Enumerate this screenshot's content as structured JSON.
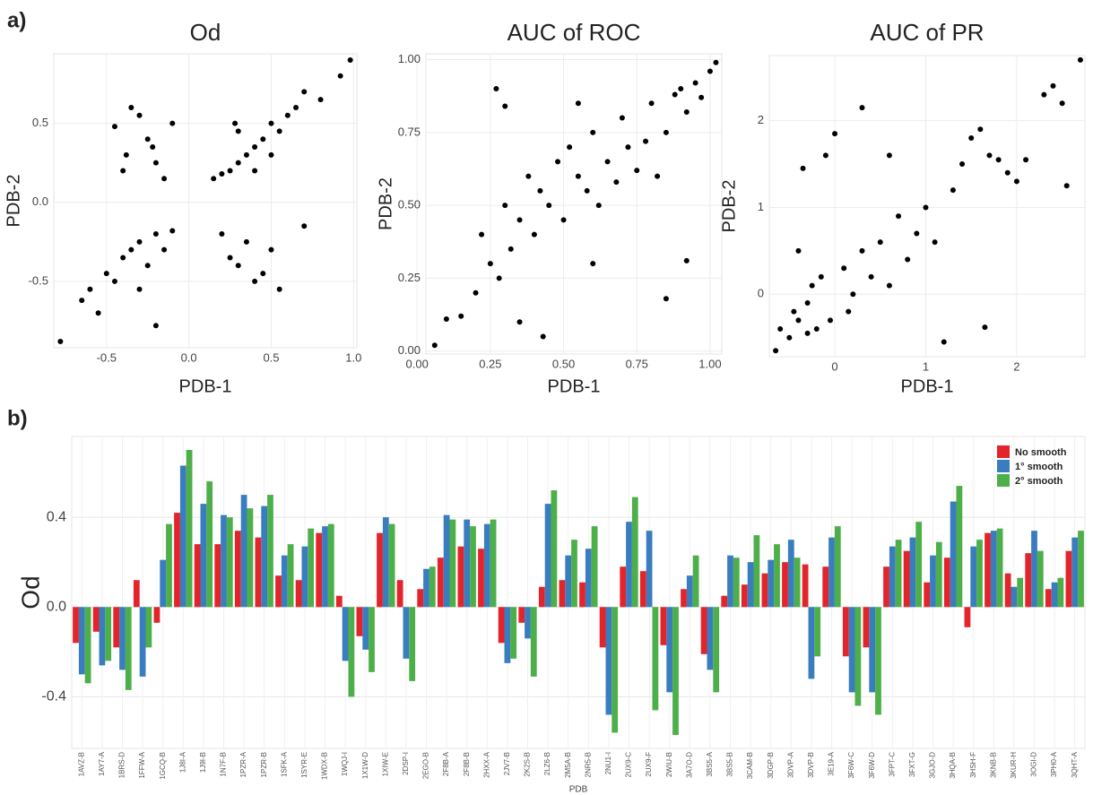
{
  "panel_labels": [
    "a)",
    "b)"
  ],
  "chart_data": [
    {
      "type": "scatter",
      "title": "Od",
      "x_label": "PDB-1",
      "y_label": "PDB-2",
      "color": "#000000",
      "grid": true,
      "xlim": [
        -0.82,
        1.02
      ],
      "ylim": [
        -0.92,
        0.94
      ],
      "xticks": [
        -0.5,
        {
          "value": 0,
          "label": "0.0"
        },
        0.5,
        {
          "value": 1,
          "label": "1.0"
        }
      ],
      "yticks": [
        -0.5,
        {
          "value": 0,
          "label": "0.0"
        },
        0.5
      ],
      "x": [
        -0.78,
        0.98,
        0.92,
        0.8,
        0.7,
        0.6,
        0.55,
        0.5,
        0.45,
        0.4,
        0.35,
        0.3,
        0.25,
        0.2,
        0.15,
        0.65,
        0.3,
        0.4,
        0.5,
        0.28,
        -0.45,
        -0.38,
        -0.3,
        -0.25,
        -0.2,
        -0.15,
        -0.1,
        -0.35,
        -0.22,
        -0.4,
        -0.6,
        -0.55,
        -0.5,
        -0.45,
        -0.4,
        -0.35,
        -0.3,
        -0.25,
        -0.2,
        -0.15,
        -0.1,
        -0.65,
        -0.3,
        -0.2,
        0.2,
        0.3,
        0.35,
        0.4,
        0.5,
        0.55,
        0.7,
        0.25,
        0.45
      ],
      "y": [
        -0.88,
        0.9,
        0.8,
        0.65,
        0.7,
        0.55,
        0.45,
        0.5,
        0.4,
        0.35,
        0.3,
        0.25,
        0.2,
        0.18,
        0.15,
        0.6,
        0.45,
        0.2,
        0.3,
        0.5,
        0.48,
        0.3,
        0.55,
        0.4,
        0.25,
        0.15,
        0.5,
        0.6,
        0.35,
        0.2,
        -0.55,
        -0.7,
        -0.45,
        -0.5,
        -0.35,
        -0.3,
        -0.25,
        -0.4,
        -0.2,
        -0.3,
        -0.18,
        -0.62,
        -0.55,
        -0.78,
        -0.2,
        -0.4,
        -0.25,
        -0.5,
        -0.3,
        -0.55,
        -0.15,
        -0.35,
        -0.45
      ]
    },
    {
      "type": "scatter",
      "title": "AUC of ROC",
      "x_label": "PDB-1",
      "y_label": "PDB-2",
      "color": "#000000",
      "grid": true,
      "xlim": [
        0.03,
        1.04
      ],
      "ylim": [
        -0.01,
        1.02
      ],
      "xticks": [
        {
          "value": 0,
          "label": "0.00"
        },
        0.25,
        {
          "value": 0.5,
          "label": "0.50"
        },
        0.75,
        {
          "value": 1,
          "label": "1.00"
        }
      ],
      "yticks": [
        {
          "value": 0,
          "label": "0.00"
        },
        0.25,
        {
          "value": 0.5,
          "label": "0.50"
        },
        0.75,
        {
          "value": 1,
          "label": "1.00"
        }
      ],
      "x": [
        0.06,
        0.1,
        0.15,
        0.2,
        0.22,
        0.25,
        0.28,
        0.3,
        0.32,
        0.35,
        0.38,
        0.4,
        0.42,
        0.45,
        0.48,
        0.5,
        0.52,
        0.55,
        0.58,
        0.6,
        0.62,
        0.65,
        0.68,
        0.7,
        0.72,
        0.75,
        0.78,
        0.8,
        0.82,
        0.85,
        0.88,
        0.9,
        0.92,
        0.95,
        0.97,
        1.0,
        1.02,
        0.27,
        0.3,
        0.43,
        0.85,
        0.92,
        0.6,
        0.55,
        0.35
      ],
      "y": [
        0.02,
        0.11,
        0.12,
        0.2,
        0.4,
        0.3,
        0.25,
        0.5,
        0.35,
        0.45,
        0.6,
        0.4,
        0.55,
        0.5,
        0.65,
        0.45,
        0.7,
        0.6,
        0.55,
        0.75,
        0.5,
        0.65,
        0.58,
        0.8,
        0.7,
        0.62,
        0.72,
        0.85,
        0.6,
        0.75,
        0.88,
        0.9,
        0.82,
        0.92,
        0.87,
        0.96,
        0.99,
        0.9,
        0.84,
        0.05,
        0.18,
        0.31,
        0.3,
        0.85,
        0.1
      ]
    },
    {
      "type": "scatter",
      "title": "AUC of PR",
      "x_label": "PDB-1",
      "y_label": "PDB-2",
      "color": "#000000",
      "grid": true,
      "xlim": [
        -0.72,
        2.75
      ],
      "ylim": [
        -0.72,
        2.75
      ],
      "xticks": [
        0,
        1,
        2
      ],
      "yticks": [
        0,
        1,
        2
      ],
      "x": [
        -0.65,
        -0.6,
        -0.5,
        -0.45,
        -0.4,
        -0.35,
        -0.3,
        -0.25,
        -0.2,
        -0.15,
        -0.1,
        -0.05,
        0,
        0.1,
        0.2,
        0.3,
        0.4,
        0.5,
        0.6,
        0.7,
        0.8,
        0.9,
        1,
        1.1,
        1.2,
        1.3,
        1.4,
        1.5,
        1.6,
        1.7,
        1.8,
        1.9,
        2.0,
        2.1,
        2.3,
        2.4,
        2.5,
        2.7,
        -0.4,
        0.15,
        0.6,
        -0.3,
        0.3,
        1.65,
        2.55
      ],
      "y": [
        -0.65,
        -0.4,
        -0.5,
        -0.2,
        -0.3,
        1.45,
        -0.1,
        0.1,
        -0.4,
        0.2,
        1.6,
        -0.3,
        1.85,
        0.3,
        0.0,
        0.5,
        0.2,
        0.6,
        0.1,
        0.9,
        0.4,
        0.7,
        1.0,
        0.6,
        -0.55,
        1.2,
        1.5,
        1.8,
        1.9,
        1.6,
        1.55,
        1.4,
        1.3,
        1.55,
        2.3,
        2.4,
        2.2,
        2.7,
        0.5,
        -0.2,
        1.6,
        -0.45,
        2.15,
        -0.38,
        1.25
      ]
    },
    {
      "type": "bar",
      "x_label": "PDB",
      "y_label": "Od",
      "grid": true,
      "legend": "top-right",
      "ylim": [
        -0.63,
        0.76
      ],
      "yticks": [
        -0.4,
        {
          "value": 0,
          "label": "0.0"
        },
        0.4
      ],
      "categories": [
        "1AVZ-B",
        "1AY7-A",
        "1BRS-D",
        "1FFW-A",
        "1GCQ-B",
        "1J8I-A",
        "1J9I-B",
        "1N7F-B",
        "1PZR-A",
        "1PZR-B",
        "1SFK-A",
        "1SYR-E",
        "1WDX-B",
        "1WQJ-I",
        "1X1W-D",
        "1XIW-E",
        "2DSP-I",
        "2EGO-B",
        "2F8B-A",
        "2F8B-B",
        "2HXX-A",
        "2JV7-B",
        "2K2S-B",
        "2LZ6-B",
        "2M5A-B",
        "2NR5-B",
        "2NU1-I",
        "2UX9-C",
        "2UX9-F",
        "2WIU-B",
        "3A7O-D",
        "3BS5-A",
        "3BS5-B",
        "3CAM-B",
        "3DGP-B",
        "3DVP-A",
        "3DVP-B",
        "3E19-A",
        "3F6W-C",
        "3F6W-D",
        "3FPT-C",
        "3FXT-G",
        "3GJO-D",
        "3HQA-B",
        "3HSH-F",
        "3KNB-B",
        "3KUR-H",
        "3OGI-D",
        "3PH0-A",
        "3QHT-A"
      ],
      "series": [
        {
          "name": "No smooth",
          "color": "#e3242b",
          "values": [
            -0.16,
            -0.11,
            -0.18,
            0.12,
            -0.07,
            0.42,
            0.28,
            0.28,
            0.34,
            0.31,
            0.14,
            0.12,
            0.33,
            0.05,
            -0.13,
            0.33,
            0.12,
            0.08,
            0.22,
            0.27,
            0.26,
            -0.16,
            -0.07,
            0.09,
            0.12,
            0.11,
            -0.18,
            0.18,
            0.16,
            -0.17,
            0.08,
            -0.21,
            0.05,
            0.1,
            0.15,
            0.2,
            0.19,
            0.18,
            -0.22,
            -0.18,
            0.18,
            0.25,
            0.11,
            0.22,
            -0.09,
            0.33,
            0.15,
            0.24,
            0.08,
            0.25
          ]
        },
        {
          "name": "1° smooth",
          "color": "#3a7dbf",
          "values": [
            -0.3,
            -0.26,
            -0.28,
            -0.31,
            0.21,
            0.63,
            0.46,
            0.41,
            0.5,
            0.45,
            0.23,
            0.27,
            0.36,
            -0.24,
            -0.19,
            0.4,
            -0.23,
            0.17,
            0.41,
            0.39,
            0.37,
            -0.25,
            -0.14,
            0.46,
            0.23,
            0.26,
            -0.48,
            0.38,
            0.34,
            -0.38,
            0.14,
            -0.28,
            0.23,
            0.2,
            0.21,
            0.3,
            -0.32,
            0.31,
            -0.38,
            -0.38,
            0.27,
            0.31,
            0.23,
            0.47,
            0.27,
            0.34,
            0.09,
            0.34,
            0.11,
            0.31
          ]
        },
        {
          "name": "2° smooth",
          "color": "#4daf4a",
          "values": [
            -0.34,
            -0.24,
            -0.37,
            -0.18,
            0.37,
            0.7,
            0.56,
            0.4,
            0.44,
            0.5,
            0.28,
            0.35,
            0.37,
            -0.4,
            -0.29,
            0.37,
            -0.33,
            0.18,
            0.39,
            0.36,
            0.39,
            -0.23,
            -0.31,
            0.52,
            0.3,
            0.36,
            -0.56,
            0.49,
            -0.46,
            -0.57,
            0.23,
            -0.38,
            0.22,
            0.32,
            0.28,
            0.22,
            -0.22,
            0.36,
            -0.44,
            -0.48,
            0.3,
            0.38,
            0.29,
            0.54,
            0.3,
            0.35,
            0.13,
            0.25,
            0.13,
            0.34
          ]
        }
      ]
    }
  ]
}
